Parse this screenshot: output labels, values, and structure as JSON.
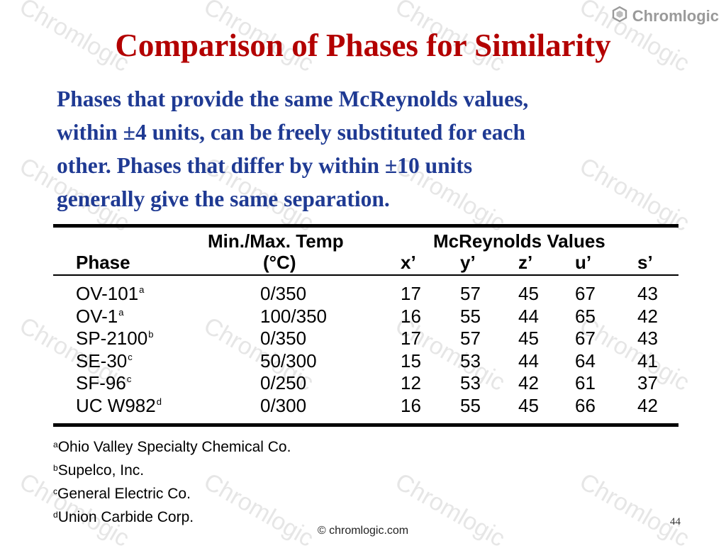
{
  "brand": {
    "name": "Chromlogic",
    "logo_icon": "hexagon-icon"
  },
  "watermark": "Chromlogic",
  "slide": {
    "title": "Comparison of Phases for Similarity",
    "intro": [
      "Phases that provide the same McReynolds values,",
      "within ±4 units, can be freely substituted for each",
      "other. Phases that differ by within ±10 units",
      "generally give the same separation."
    ]
  },
  "table": {
    "headers": {
      "phase": "Phase",
      "temp_line1": "Min./Max.  Temp",
      "temp_line2": "(°C)",
      "mcr": "McReynolds  Values",
      "x": "x’",
      "y": "y’",
      "z": "z’",
      "u": "u’",
      "s": "s’"
    },
    "rows": [
      {
        "phase": "OV-101",
        "mark": "a",
        "temp": "0/350",
        "x": "17",
        "y": "57",
        "z": "45",
        "u": "67",
        "s": "43"
      },
      {
        "phase": "OV-1",
        "mark": "a",
        "temp": "100/350",
        "x": "16",
        "y": "55",
        "z": "44",
        "u": "65",
        "s": "42"
      },
      {
        "phase": "SP-2100",
        "mark": "b",
        "temp": "0/350",
        "x": "17",
        "y": "57",
        "z": "45",
        "u": "67",
        "s": "43"
      },
      {
        "phase": "SE-30",
        "mark": "c",
        "temp": "50/300",
        "x": "15",
        "y": "53",
        "z": "44",
        "u": "64",
        "s": "41"
      },
      {
        "phase": "SF-96",
        "mark": "c",
        "temp": "0/250",
        "x": "12",
        "y": "53",
        "z": "42",
        "u": "61",
        "s": "37"
      },
      {
        "phase": "UC W982",
        "mark": "d",
        "temp": "0/300",
        "x": "16",
        "y": "55",
        "z": "45",
        "u": "66",
        "s": "42"
      }
    ]
  },
  "footnotes": [
    {
      "mark": "a",
      "text": "Ohio Valley Specialty Chemical Co."
    },
    {
      "mark": "b",
      "text": "Supelco,  Inc."
    },
    {
      "mark": "c",
      "text": "General Electric Co."
    },
    {
      "mark": "d",
      "text": "Union Carbide Corp."
    }
  ],
  "copyright": "© chromlogic.com",
  "page_number": "44",
  "colors": {
    "title": "#b30000",
    "intro": "#1f3a93",
    "watermark": "#e6e6e6"
  }
}
